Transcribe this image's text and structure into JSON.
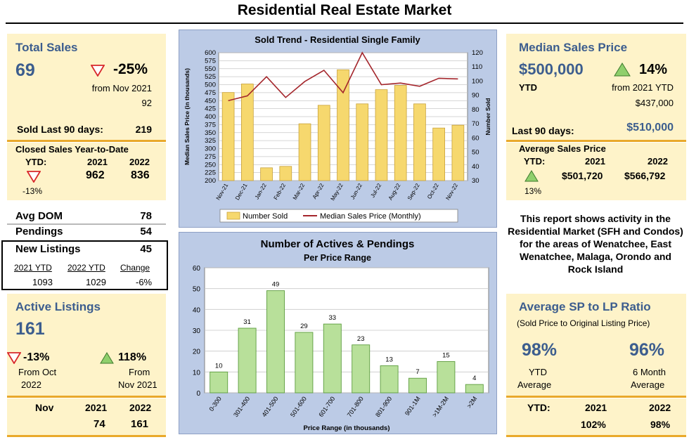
{
  "page_title": "Residential Real Estate Market",
  "left": {
    "total_sales": {
      "title": "Total Sales",
      "value": "69",
      "change": "-25%",
      "from_label": "from Nov 2021",
      "from_value": "92",
      "last90_label": "Sold Last 90 days:",
      "last90_value": "219"
    },
    "closed_ytd": {
      "title": "Closed Sales Year-to-Date",
      "ytd_label": "YTD:",
      "year1": "2021",
      "year2": "2022",
      "val1": "962",
      "val2": "836",
      "change": "-13%"
    },
    "avg_dom": {
      "label": "Avg DOM",
      "value": "78"
    },
    "pendings": {
      "label": "Pendings",
      "value": "54"
    },
    "new_listings": {
      "label": "New Listings",
      "value": "45",
      "col1": "2021 YTD",
      "col2": "2022 YTD",
      "col3": "Change",
      "v1": "1093",
      "v2": "1029",
      "v3": "-6%"
    },
    "active_listings": {
      "title": "Active Listings",
      "value": "161",
      "change1": "-13%",
      "from1a": "From Oct",
      "from1b": "2022",
      "change2": "118%",
      "from2a": "From",
      "from2b": "Nov 2021"
    },
    "footer": {
      "month": "Nov",
      "year1": "2021",
      "year2": "2022",
      "val1": "74",
      "val2": "161"
    }
  },
  "right": {
    "median": {
      "title": "Median Sales Price",
      "value": "$500,000",
      "change": "14%",
      "ytd_label": "YTD",
      "from_label": "from 2021 YTD",
      "from_value": "$437,000",
      "last90_label": "Last 90 days:",
      "last90_value": "$510,000"
    },
    "average": {
      "title": "Average Sales Price",
      "ytd_label": "YTD:",
      "year1": "2021",
      "year2": "2022",
      "val1": "$501,720",
      "val2": "$566,792",
      "change": "13%"
    },
    "report_text": "This report shows activity in the Residential Market (SFH and Condos) for the areas of Wenatchee, East Wenatchee, Malaga, Orondo and Rock Island",
    "ratio": {
      "title": "Average SP to LP Ratio",
      "subtitle": "(Sold Price to Original Listing Price)",
      "val1": "98%",
      "val1_a": "YTD",
      "val1_b": "Average",
      "val2": "96%",
      "val2_a": "6 Month",
      "val2_b": "Average",
      "ytd_label": "YTD:",
      "year1": "2021",
      "year2": "2022",
      "p1": "102%",
      "p2": "98%"
    }
  },
  "colors": {
    "accent_blue": "#3c5d8e",
    "panel_bg": "#fef3c9",
    "rule": "#e9a92b",
    "down_red": "#d8282b",
    "up_green": "#8fcf6c"
  },
  "chart_data": [
    {
      "type": "bar",
      "title": "Sold Trend - Residential Single Family",
      "categories": [
        "Nov-21",
        "Dec-21",
        "Jan-22",
        "Feb-22",
        "Mar-22",
        "Apr-22",
        "May-22",
        "Jun-22",
        "Jul-22",
        "Aug-22",
        "Sep-22",
        "Oct-22",
        "Nov-22"
      ],
      "ylabel": "Median Sales Price (in thousands)",
      "y2label": "Number Sold",
      "ylim": [
        200,
        600
      ],
      "y2lim": [
        30,
        120
      ],
      "yticks": [
        200,
        225,
        250,
        275,
        300,
        325,
        350,
        375,
        400,
        425,
        450,
        475,
        500,
        525,
        550,
        575,
        600
      ],
      "y2ticks": [
        30,
        40,
        50,
        60,
        70,
        80,
        90,
        100,
        110,
        120
      ],
      "series": [
        {
          "name": "Number Sold",
          "axis": "right",
          "kind": "bar",
          "values": [
            92,
            98,
            39,
            40,
            70,
            83,
            108,
            84,
            94,
            97,
            84,
            67,
            69
          ]
        },
        {
          "name": "Median Sales Price (Monthly)",
          "axis": "left",
          "kind": "line",
          "values": [
            450,
            465,
            525,
            460,
            510,
            545,
            475,
            600,
            500,
            505,
            495,
            520,
            518
          ]
        }
      ],
      "legend": "bottom",
      "grid": true
    },
    {
      "type": "bar",
      "title": "Number of Actives & Pendings",
      "subtitle": "Per Price Range",
      "xlabel": "Price Range (in thousands)",
      "categories": [
        "0-300",
        "301-400",
        "401-500",
        "501-600",
        "601-700",
        "701-800",
        "801-900",
        "901-1M",
        ">1M-2M",
        ">2M"
      ],
      "values": [
        10,
        31,
        49,
        29,
        33,
        23,
        13,
        7,
        15,
        4
      ],
      "ylim": [
        0,
        60
      ],
      "yticks": [
        0,
        10,
        20,
        30,
        40,
        50,
        60
      ],
      "grid": true
    }
  ]
}
